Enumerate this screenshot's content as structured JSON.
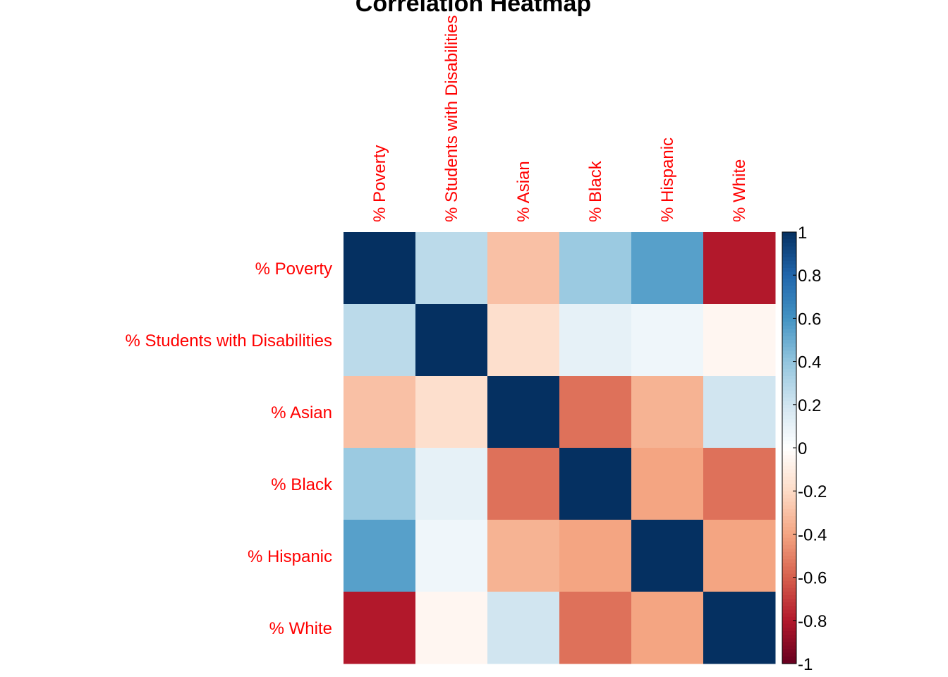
{
  "chart_data": {
    "type": "heatmap",
    "title": "Correlation Heatmap",
    "row_labels": [
      "% Poverty",
      "% Students with Disabilities",
      "% Asian",
      "% Black",
      "% Hispanic",
      "% White"
    ],
    "col_labels": [
      "% Poverty",
      "% Students with Disabilities",
      "% Asian",
      "% Black",
      "% Hispanic",
      "% White"
    ],
    "values": [
      [
        1.0,
        0.27,
        -0.3,
        0.37,
        0.55,
        -0.8
      ],
      [
        0.27,
        1.0,
        -0.18,
        0.11,
        0.07,
        -0.05
      ],
      [
        -0.3,
        -0.18,
        1.0,
        -0.55,
        -0.35,
        0.2
      ],
      [
        0.37,
        0.11,
        -0.55,
        1.0,
        -0.4,
        -0.55
      ],
      [
        0.55,
        0.07,
        -0.35,
        -0.4,
        1.0,
        -0.4
      ],
      [
        -0.8,
        -0.05,
        0.2,
        -0.55,
        -0.4,
        1.0
      ]
    ],
    "color_range": [
      -1,
      1
    ],
    "colorbar_ticks": [
      "1",
      "0.8",
      "0.6",
      "0.4",
      "0.2",
      "0",
      "-0.2",
      "-0.4",
      "-0.6",
      "-0.8",
      "-1"
    ],
    "colorbar_tick_values": [
      1,
      0.8,
      0.6,
      0.4,
      0.2,
      0,
      -0.2,
      -0.4,
      -0.6,
      -0.8,
      -1
    ],
    "colorscale": [
      "#67001F",
      "#B2182B",
      "#D6604D",
      "#F4A582",
      "#FDDBC7",
      "#FFFFFF",
      "#D1E5F0",
      "#92C5DE",
      "#4393C3",
      "#2166AC",
      "#053061"
    ],
    "label_color": "#FF0000",
    "legend_position": "right"
  }
}
